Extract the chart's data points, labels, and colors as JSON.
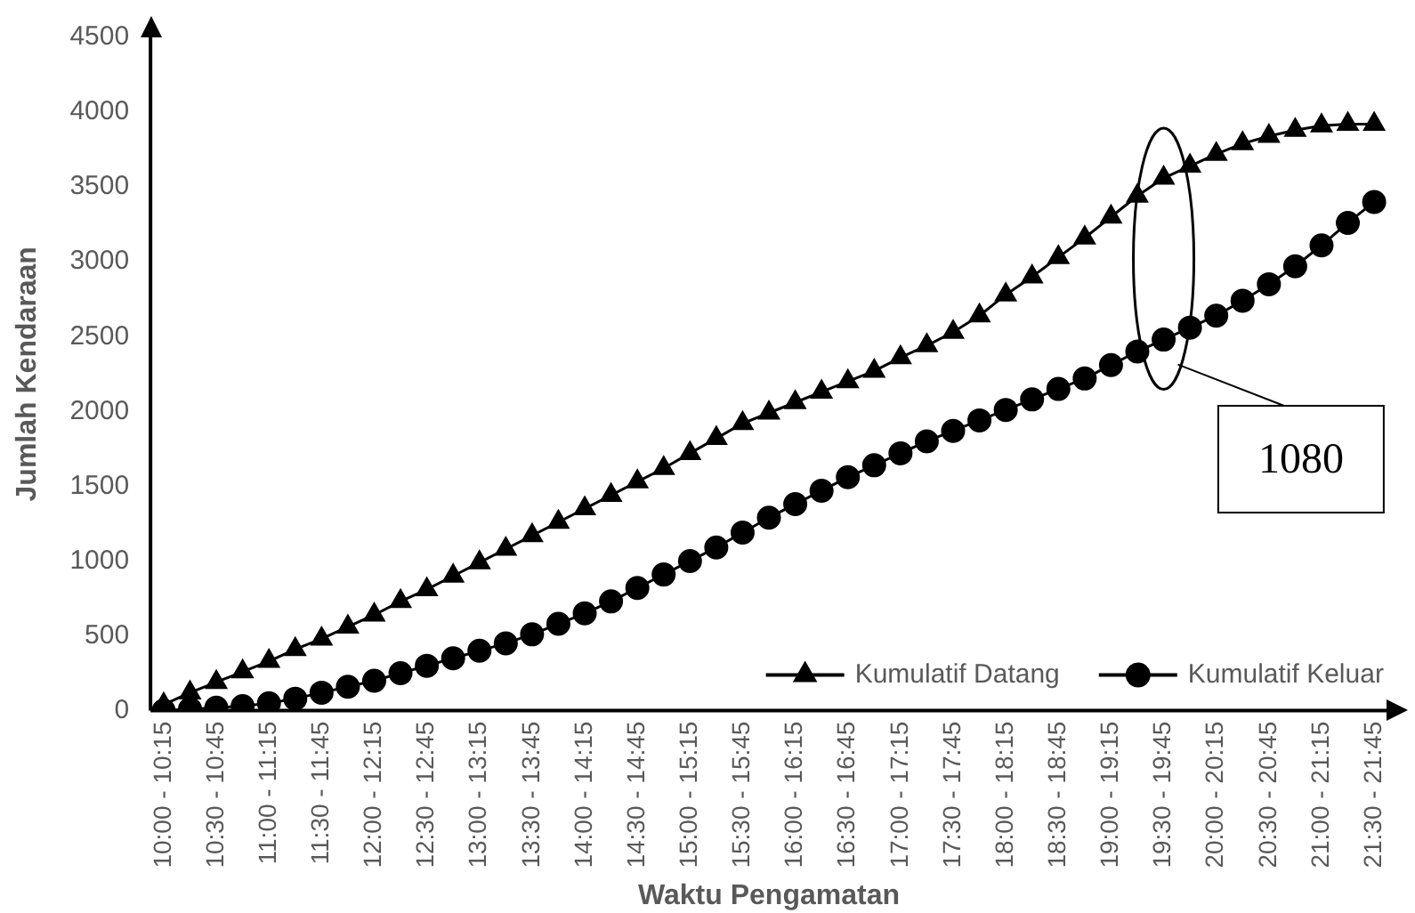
{
  "chart_data": {
    "type": "line",
    "xlabel": "Waktu Pengamatan",
    "ylabel": "Jumlah Kendaraan",
    "categories": [
      "10:00 - 10:15",
      null,
      "10:30 - 10:45",
      null,
      "11:00 - 11:15",
      null,
      "11:30 - 11:45",
      null,
      "12:00 - 12:15",
      null,
      "12:30 - 12:45",
      null,
      "13:00 - 13:15",
      null,
      "13:30 - 13:45",
      null,
      "14:00 - 14:15",
      null,
      "14:30 - 14:45",
      null,
      "15:00 - 15:15",
      null,
      "15:30 - 15:45",
      null,
      "16:00 - 16:15",
      null,
      "16:30 - 16:45",
      null,
      "17:00 - 17:15",
      null,
      "17:30 - 17:45",
      null,
      "18:00 - 18:15",
      null,
      "18:30 - 18:45",
      null,
      "19:00 - 19:15",
      null,
      "19:30 - 19:45",
      null,
      "20:00 - 20:15",
      null,
      "20:30 - 20:45",
      null,
      "21:00 - 21:15",
      null,
      "21:30 - 21:45"
    ],
    "series": [
      {
        "name": "Kumulatif Datang",
        "color": "#000000",
        "marker": "triangle",
        "values": [
          40,
          120,
          190,
          260,
          330,
          410,
          480,
          560,
          640,
          730,
          810,
          900,
          990,
          1080,
          1170,
          1260,
          1350,
          1440,
          1530,
          1620,
          1720,
          1820,
          1920,
          1990,
          2060,
          2130,
          2200,
          2270,
          2360,
          2440,
          2530,
          2640,
          2780,
          2900,
          3030,
          3160,
          3300,
          3440,
          3560,
          3640,
          3720,
          3790,
          3840,
          3880,
          3910,
          3920,
          3920
        ]
      },
      {
        "name": "Kumulatif Keluar",
        "color": "#000000",
        "marker": "circle",
        "values": [
          0,
          10,
          20,
          30,
          50,
          80,
          120,
          160,
          200,
          250,
          300,
          350,
          400,
          450,
          510,
          580,
          650,
          730,
          820,
          910,
          1000,
          1090,
          1190,
          1290,
          1380,
          1470,
          1560,
          1640,
          1720,
          1800,
          1870,
          1940,
          2010,
          2080,
          2150,
          2220,
          2310,
          2400,
          2480,
          2560,
          2640,
          2740,
          2850,
          2970,
          3110,
          3260,
          3400
        ]
      }
    ],
    "ylim": [
      0,
      4500
    ],
    "yticks": [
      0,
      500,
      1000,
      1500,
      2000,
      2500,
      3000,
      3500,
      4000,
      4500
    ],
    "grid": false,
    "legend": "bottom right",
    "line_style": "solid",
    "annotations": [
      "1080"
    ]
  }
}
